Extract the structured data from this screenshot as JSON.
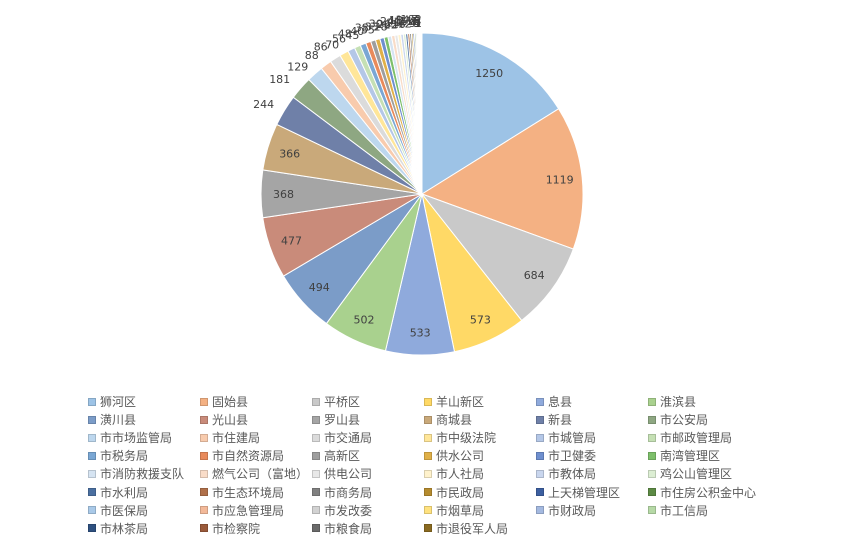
{
  "chart_data": {
    "type": "pie",
    "labels": [
      "狮河区",
      "固始县",
      "平桥区",
      "羊山新区",
      "息县",
      "淮滨县",
      "潢川县",
      "光山县",
      "罗山县",
      "商城县",
      "新县",
      "市公安局",
      "市市场监管局",
      "市住建局",
      "市交通局",
      "市中级法院",
      "市城管局",
      "市邮政管理局",
      "市税务局",
      "市自然资源局",
      "高新区",
      "供水公司",
      "市卫健委",
      "南湾管理区",
      "市消防救援支队",
      "燃气公司（富地）",
      "供电公司",
      "市人社局",
      "市教体局",
      "鸡公山管理区",
      "市水利局",
      "市生态环境局",
      "市商务局",
      "市民政局",
      "上天梯管理区",
      "市住房公积金中心",
      "市医保局",
      "市应急管理局",
      "市发改委",
      "市烟草局",
      "市财政局",
      "市工信局",
      "市林茶局",
      "市检察院",
      "市粮食局",
      "市退役军人局"
    ],
    "values": [
      1250,
      1119,
      684,
      573,
      533,
      502,
      494,
      477,
      368,
      366,
      244,
      181,
      129,
      88,
      86,
      70,
      56,
      48,
      45,
      40,
      38,
      35,
      33,
      30,
      28,
      26,
      24,
      22,
      20,
      18,
      16,
      15,
      14,
      12,
      11,
      10,
      9,
      8,
      7,
      6,
      5,
      4,
      3,
      3,
      2,
      1
    ],
    "point_labels": [
      "1250",
      "1119",
      "684",
      "573",
      "533",
      "502",
      "494",
      "477",
      "368",
      "366",
      "244",
      "181",
      "129",
      "88",
      "86",
      "70",
      "56",
      "48",
      "45",
      "40",
      "38",
      "35",
      "33",
      "30",
      "28",
      "26",
      "24",
      "22",
      "20",
      "18",
      "16",
      "15",
      "14",
      "12",
      "11",
      "10",
      "9",
      "8",
      "7",
      "6",
      "5",
      "4",
      "3",
      "3",
      "2",
      "1"
    ],
    "colors": [
      "#9dc3e6",
      "#f4b183",
      "#c9c9c9",
      "#ffd966",
      "#8faadc",
      "#a9d18e",
      "#7b9cc8",
      "#c98b7a",
      "#a5a5a5",
      "#c9a97a",
      "#6f80a8",
      "#8ea782",
      "#bdd7ee",
      "#f8cbad",
      "#dbdbdb",
      "#ffe699",
      "#b4c7e7",
      "#c5e0b4",
      "#7aa7d4",
      "#e88a5b",
      "#9e9e9e",
      "#e0b048",
      "#6e8fcf",
      "#7dbf6a",
      "#d6e4f2",
      "#f9dcc8",
      "#e8e8e8",
      "#fff2cc",
      "#c9d6ee",
      "#dceed3",
      "#4a6fa0",
      "#b0704a",
      "#808080",
      "#b58b2e",
      "#3c5fa0",
      "#5c8a44",
      "#a9c9e8",
      "#f3b999",
      "#d2d2d2",
      "#ffe27f",
      "#a4b9e0",
      "#b6d9a6",
      "#2e5080",
      "#9a5a3a",
      "#6a6a6a",
      "#8a6a20"
    ],
    "legend_position": "bottom"
  }
}
